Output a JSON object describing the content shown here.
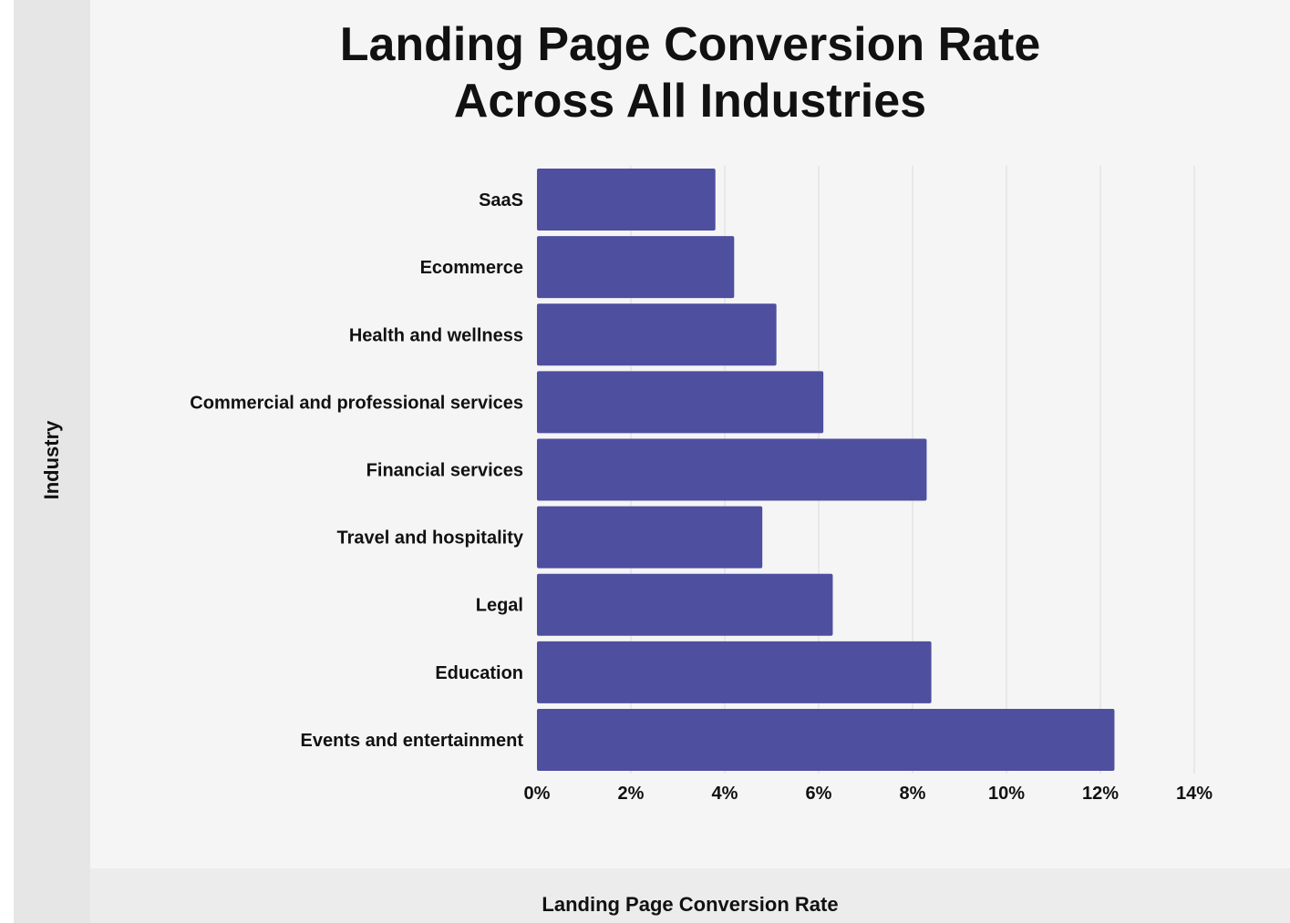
{
  "chart_data": {
    "type": "bar",
    "orientation": "horizontal",
    "title": [
      "Landing Page Conversion Rate",
      "Across All Industries"
    ],
    "xlabel": "Landing Page Conversion Rate",
    "ylabel": "Industry",
    "categories": [
      "SaaS",
      "Ecommerce",
      "Health and wellness",
      "Commercial and professional services",
      "Financial services",
      "Travel and hospitality",
      "Legal",
      "Education",
      "Events and entertainment"
    ],
    "values": [
      3.8,
      4.2,
      5.1,
      6.1,
      8.3,
      4.8,
      6.3,
      8.4,
      12.3
    ],
    "value_unit": "%",
    "xlim": [
      0,
      14
    ],
    "xticks": [
      0,
      2,
      4,
      6,
      8,
      10,
      12,
      14
    ],
    "xtick_labels": [
      "0%",
      "2%",
      "4%",
      "6%",
      "8%",
      "10%",
      "12%",
      "14%"
    ],
    "grid": "vertical",
    "bar_color": "#4e4f9f"
  }
}
